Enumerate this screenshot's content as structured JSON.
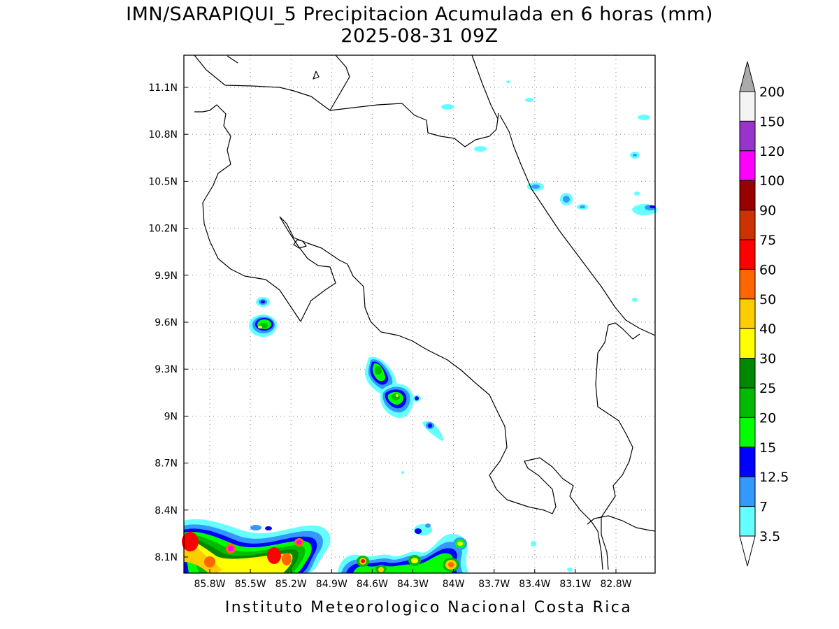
{
  "title": {
    "line1": "IMN/SARAPIQUI_5 Precipitacion Acumulada en 6 horas (mm)",
    "line2": "2025-08-31 09Z"
  },
  "footer": "Instituto Meteorologico Nacional Costa Rica",
  "map": {
    "lon_ticks": [
      "85.8W",
      "85.5W",
      "85.2W",
      "84.9W",
      "84.6W",
      "84.3W",
      "84W",
      "83.7W",
      "83.4W",
      "83.1W",
      "82.8W"
    ],
    "lat_ticks": [
      "11.1N",
      "10.8N",
      "10.5N",
      "10.2N",
      "9.9N",
      "9.6N",
      "9.3N",
      "9N",
      "8.7N",
      "8.4N",
      "8.1N"
    ],
    "grid": true
  },
  "legend": {
    "labels": [
      "200",
      "150",
      "120",
      "100",
      "90",
      "75",
      "60",
      "50",
      "40",
      "30",
      "25",
      "20",
      "15",
      "12.5",
      "7",
      "3.5"
    ],
    "colors": [
      "#aaaaaa",
      "#f4f4f4",
      "#9933cc",
      "#ff00ff",
      "#990000",
      "#cc3300",
      "#ff0000",
      "#ff6600",
      "#ffcc00",
      "#ffff00",
      "#008800",
      "#00bb00",
      "#00ff00",
      "#0000ff",
      "#3399ff",
      "#66ffff"
    ]
  }
}
